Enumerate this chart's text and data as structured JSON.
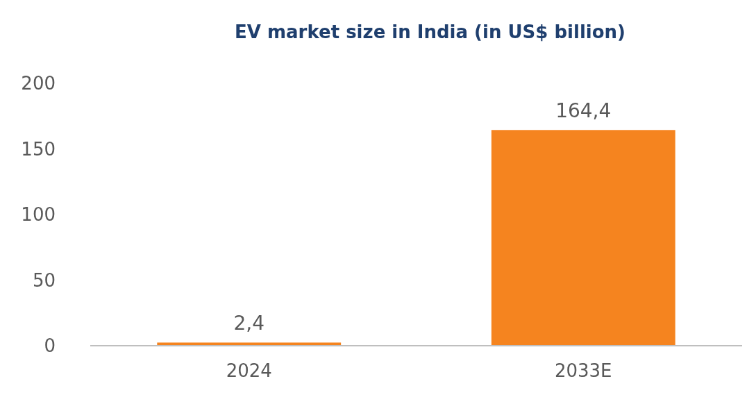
{
  "chart_data": {
    "type": "bar",
    "title": "EV market size in India (in US$ billion)",
    "categories": [
      "2024",
      "2033E"
    ],
    "values": [
      2.4,
      164.4
    ],
    "value_labels": [
      "2,4",
      "164,4"
    ],
    "color": "#f5841f",
    "ylim": [
      0,
      200
    ],
    "yticks": [
      0,
      50,
      100,
      150,
      200
    ],
    "grid": false
  }
}
